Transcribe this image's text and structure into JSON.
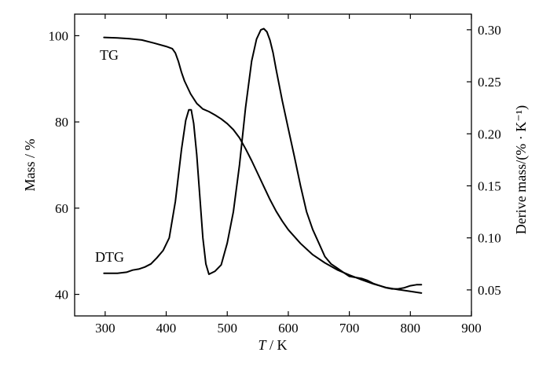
{
  "chart_data": {
    "type": "line",
    "xlabel_italic": "T",
    "xlabel_rest": " / K",
    "ylabel_left": "Mass / %",
    "ylabel_right": "Derive mass/(% · K⁻¹)",
    "xlim": [
      250,
      900
    ],
    "ylim_left": [
      35,
      105
    ],
    "ylim_right": [
      0.025,
      0.315
    ],
    "x_ticks": [
      300,
      400,
      500,
      600,
      700,
      800,
      900
    ],
    "y_left_ticks": [
      40,
      60,
      80,
      100
    ],
    "y_right_ticks": [
      "0.05",
      "0.10",
      "0.15",
      "0.20",
      "0.25",
      "0.30"
    ],
    "series": [
      {
        "name": "TG",
        "axis": "left",
        "x": [
          298,
          320,
          340,
          360,
          380,
          400,
          410,
          415,
          420,
          425,
          430,
          440,
          450,
          460,
          470,
          480,
          490,
          500,
          510,
          520,
          530,
          540,
          550,
          560,
          570,
          580,
          590,
          600,
          620,
          640,
          660,
          680,
          700,
          720,
          740,
          760,
          780,
          800,
          818
        ],
        "y": [
          99.6,
          99.5,
          99.3,
          99.0,
          98.3,
          97.5,
          97.0,
          96.0,
          94.0,
          91.5,
          89.5,
          86.5,
          84.3,
          83.0,
          82.4,
          81.6,
          80.7,
          79.6,
          78.2,
          76.3,
          73.8,
          71.0,
          68.0,
          65.0,
          62.0,
          59.3,
          57.0,
          55.0,
          51.8,
          49.2,
          47.3,
          45.7,
          44.5,
          43.4,
          42.4,
          41.6,
          41.1,
          40.7,
          40.3
        ]
      },
      {
        "name": "DTG",
        "axis": "right",
        "x": [
          298,
          310,
          320,
          335,
          345,
          355,
          365,
          375,
          385,
          395,
          405,
          415,
          425,
          432,
          437,
          441,
          445,
          450,
          455,
          460,
          465,
          470,
          480,
          490,
          500,
          510,
          520,
          530,
          540,
          548,
          555,
          560,
          565,
          570,
          575,
          580,
          590,
          600,
          610,
          620,
          630,
          640,
          650,
          660,
          670,
          680,
          690,
          700,
          710,
          720,
          730,
          740,
          750,
          760,
          770,
          780,
          790,
          800,
          810,
          818
        ],
        "y": [
          0.066,
          0.066,
          0.066,
          0.067,
          0.069,
          0.07,
          0.072,
          0.075,
          0.081,
          0.088,
          0.1,
          0.135,
          0.185,
          0.213,
          0.223,
          0.223,
          0.21,
          0.18,
          0.14,
          0.1,
          0.075,
          0.065,
          0.068,
          0.074,
          0.095,
          0.125,
          0.17,
          0.225,
          0.27,
          0.291,
          0.3,
          0.301,
          0.298,
          0.29,
          0.278,
          0.262,
          0.232,
          0.205,
          0.178,
          0.15,
          0.125,
          0.108,
          0.095,
          0.082,
          0.075,
          0.071,
          0.067,
          0.063,
          0.062,
          0.061,
          0.059,
          0.056,
          0.054,
          0.052,
          0.051,
          0.051,
          0.052,
          0.054,
          0.055,
          0.055
        ]
      }
    ],
    "grid": false,
    "legend": "none"
  }
}
